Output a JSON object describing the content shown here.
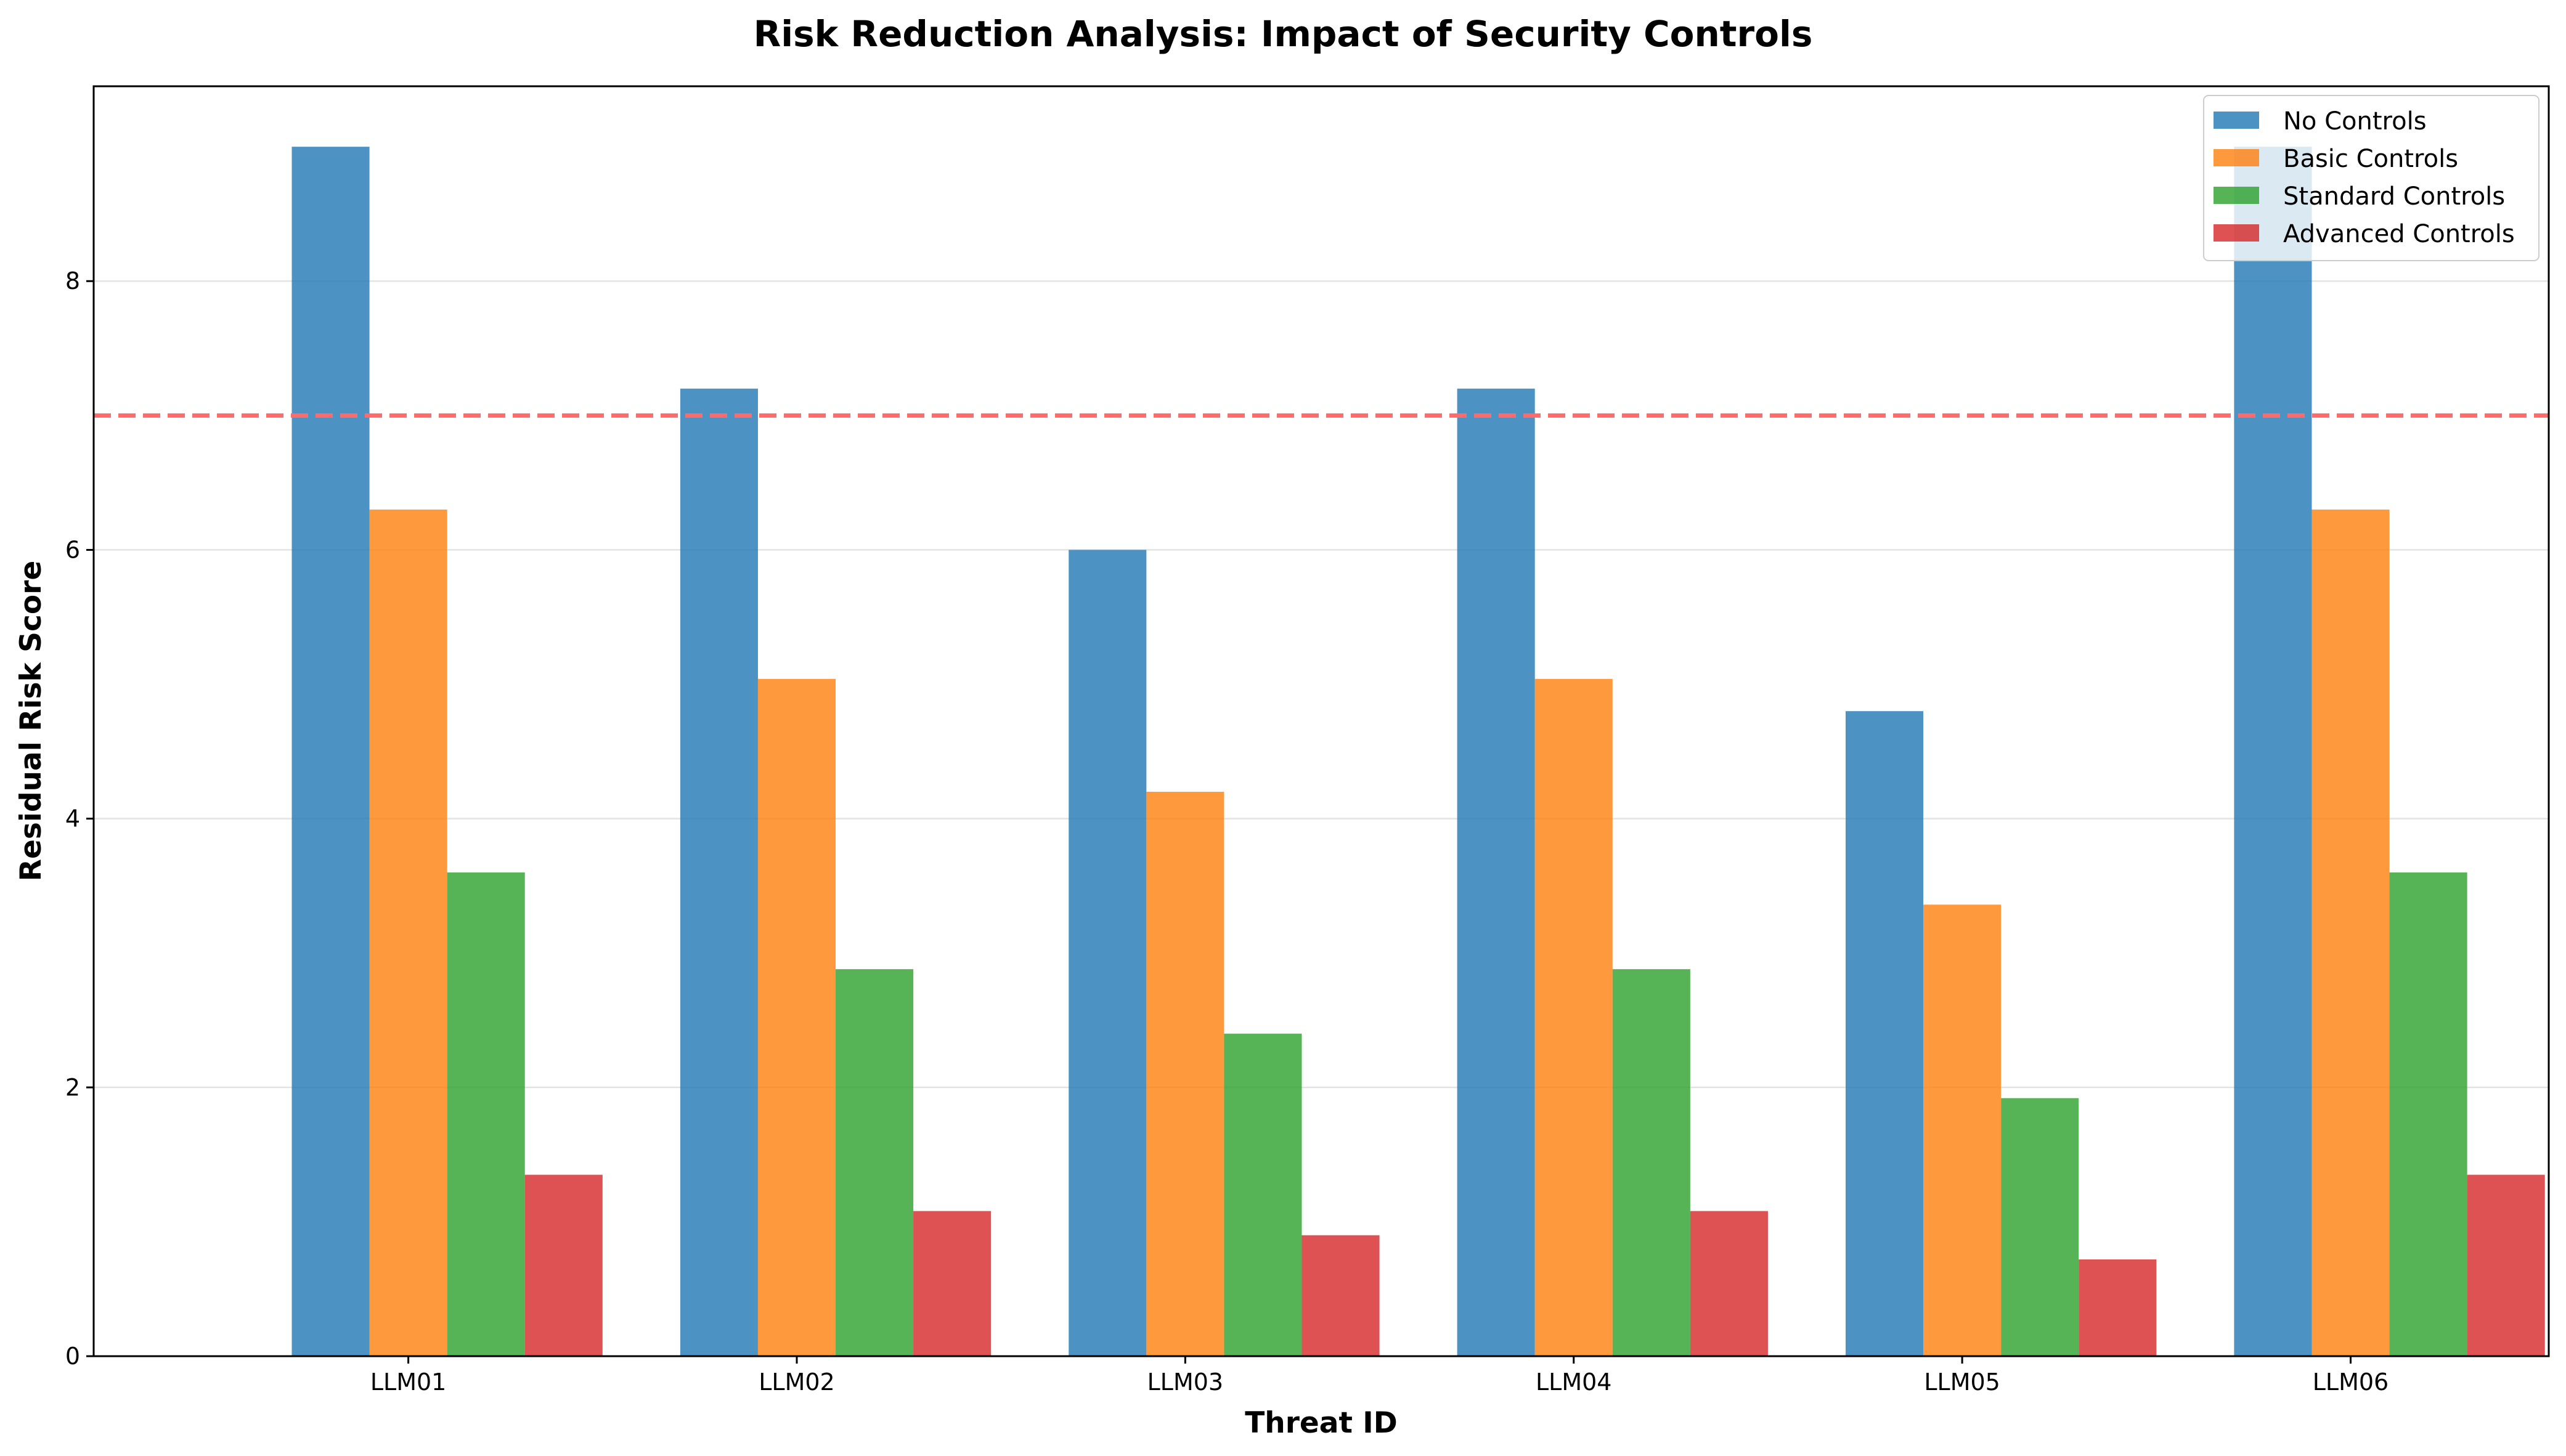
{
  "chart_data": {
    "type": "bar",
    "title": "Risk Reduction Analysis: Impact of Security Controls",
    "xlabel": "Threat ID",
    "ylabel": "Residual Risk Score",
    "categories": [
      "LLM01",
      "LLM02",
      "LLM03",
      "LLM04",
      "LLM05",
      "LLM06"
    ],
    "series": [
      {
        "name": "No Controls",
        "color": "#1f77b4",
        "values": [
          9.0,
          7.2,
          6.0,
          7.2,
          4.8,
          9.0
        ]
      },
      {
        "name": "Basic Controls",
        "color": "#ff7f0e",
        "values": [
          6.3,
          5.04,
          4.2,
          5.04,
          3.36,
          6.3
        ]
      },
      {
        "name": "Standard Controls",
        "color": "#2ca02c",
        "values": [
          3.6,
          2.88,
          2.4,
          2.88,
          1.92,
          3.6
        ]
      },
      {
        "name": "Advanced Controls",
        "color": "#d62728",
        "values": [
          1.35,
          1.08,
          0.9,
          1.08,
          0.72,
          1.35
        ]
      }
    ],
    "ylim": [
      0,
      9.45
    ],
    "yticks": [
      0,
      2,
      4,
      6,
      8
    ],
    "ytick_labels": [
      "0",
      "2",
      "4",
      "6",
      "8"
    ],
    "threshold": {
      "value": 7.0,
      "color": "#ff6b6b",
      "style": "dashed"
    },
    "grid": "horizontal",
    "legend_position": "top-right"
  }
}
